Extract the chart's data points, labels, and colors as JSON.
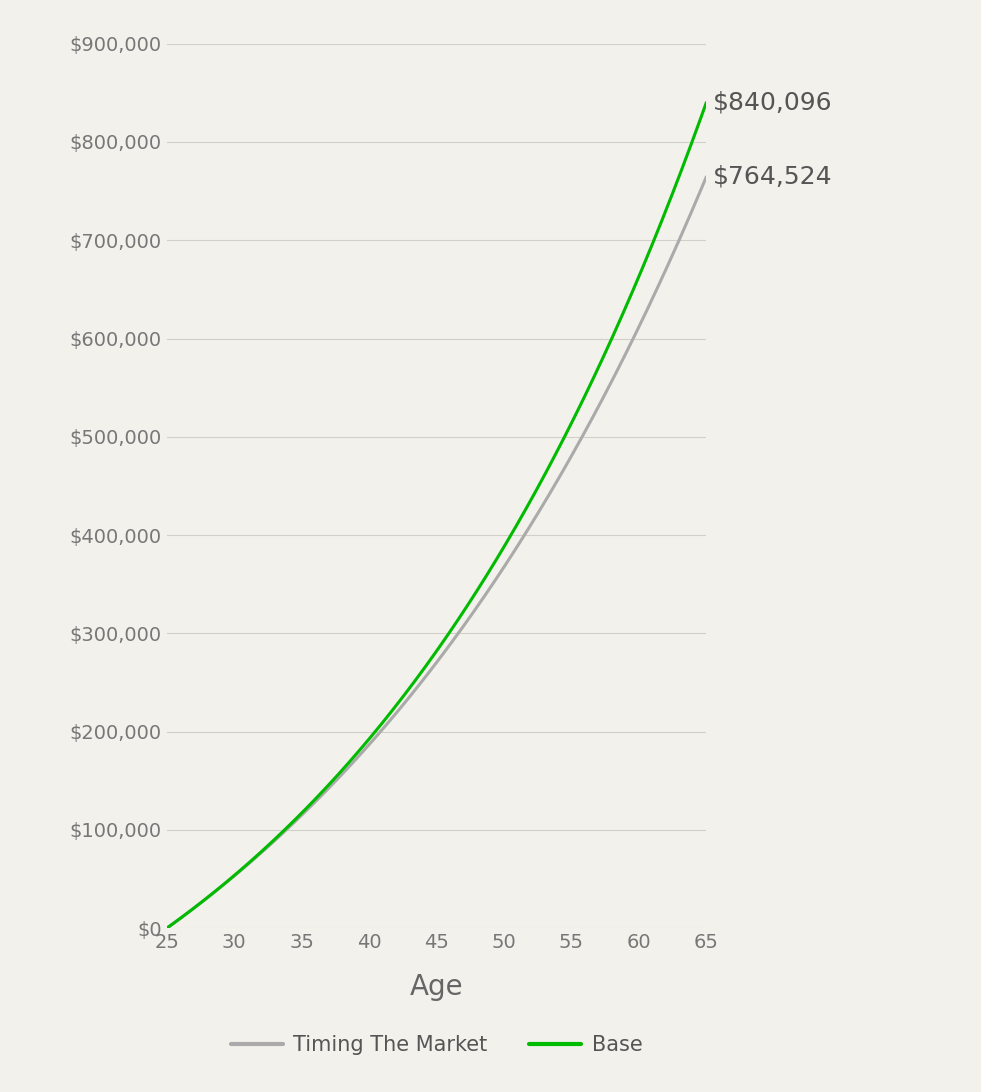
{
  "title": "",
  "xlabel": "Age",
  "ylabel": "",
  "background_color": "#f2f1ec",
  "grid_color": "#d0cfc8",
  "age_start": 25,
  "age_end": 65,
  "ylim": [
    0,
    900000
  ],
  "yticks": [
    0,
    100000,
    200000,
    300000,
    400000,
    500000,
    600000,
    700000,
    800000,
    900000
  ],
  "xticks": [
    25,
    30,
    35,
    40,
    45,
    50,
    55,
    60,
    65
  ],
  "base_final": 840096,
  "timing_final": 764524,
  "line_color_base": "#00bb00",
  "line_color_timing": "#aaaaaa",
  "label_base": "Base",
  "label_timing": "Timing The Market",
  "annotation_base": "$840,096",
  "annotation_timing": "$764,524",
  "linewidth": 2.2,
  "xlabel_fontsize": 20,
  "tick_fontsize": 14,
  "annotation_fontsize": 18,
  "legend_fontsize": 15
}
